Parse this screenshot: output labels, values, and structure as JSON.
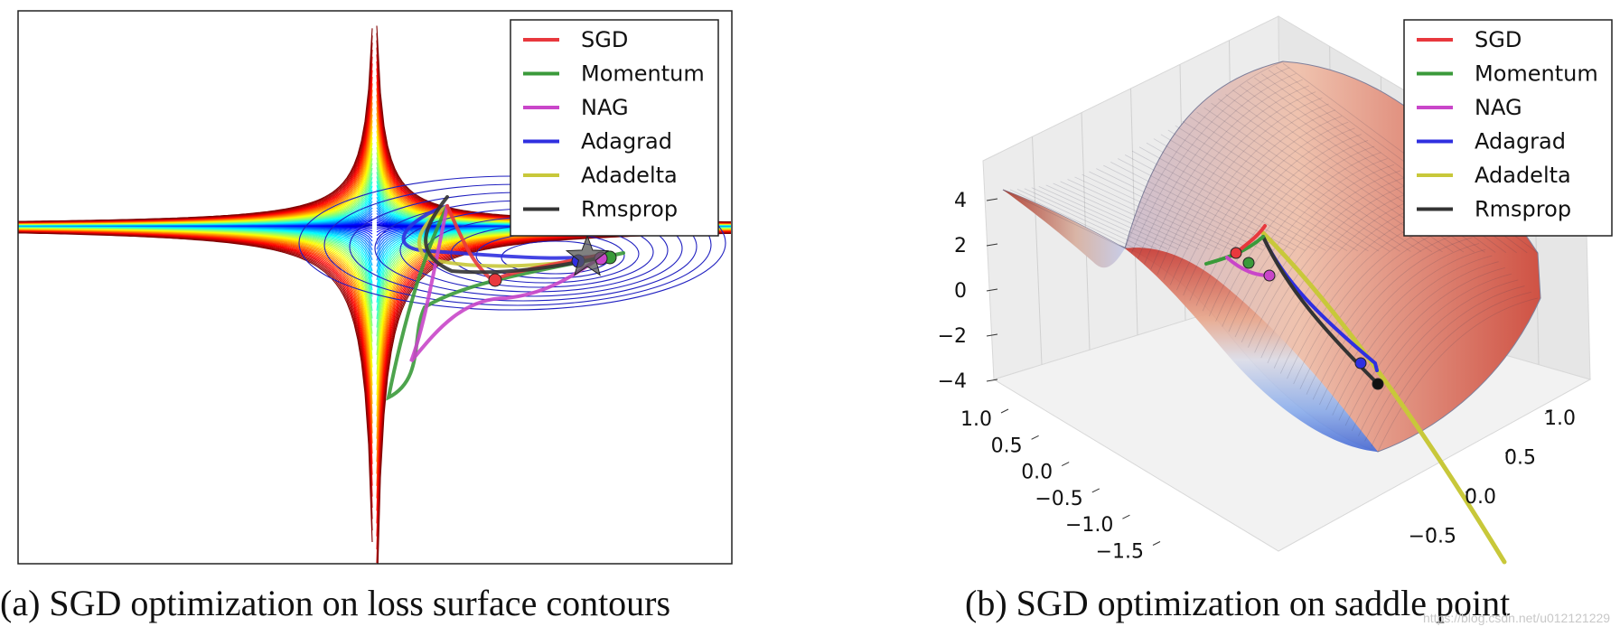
{
  "captions": {
    "a": "(a) SGD optimization on loss surface contours",
    "b": "(b) SGD optimization on saddle point"
  },
  "watermark": "https://blog.csdn.net/u012121229",
  "chart_data": [
    {
      "type": "line",
      "subtype": "contour-with-trajectories",
      "title": "",
      "surface": "beale-like loss surface, contour lines colored blue (low) to red (high) via jet colormap",
      "axes_visible": false,
      "grid": false,
      "legend_position": "top-right",
      "series": [
        {
          "name": "SGD",
          "color": "#e8383d"
        },
        {
          "name": "Momentum",
          "color": "#3a9a3a"
        },
        {
          "name": "NAG",
          "color": "#c946c9"
        },
        {
          "name": "Adagrad",
          "color": "#2f2fe0"
        },
        {
          "name": "Adadelta",
          "color": "#c8c83a"
        },
        {
          "name": "Rmsprop",
          "color": "#333333"
        }
      ],
      "minimum_marker": "star"
    },
    {
      "type": "surface",
      "subtype": "3d-saddle-with-trajectories",
      "title": "",
      "surface": "z = x^2 - y^2 saddle, coolwarm colormap",
      "legend_position": "top-right",
      "axes": {
        "z_ticks": [
          "4",
          "2",
          "0",
          "−2",
          "−4"
        ],
        "x_ticks": [
          "1.0",
          "0.5",
          "0.0",
          "−0.5",
          "−1.0",
          "−1.5"
        ],
        "y_ticks": [
          "1.0",
          "0.5",
          "0.0",
          "−0.5"
        ]
      },
      "series": [
        {
          "name": "SGD",
          "color": "#e8383d"
        },
        {
          "name": "Momentum",
          "color": "#3a9a3a"
        },
        {
          "name": "NAG",
          "color": "#c946c9"
        },
        {
          "name": "Adagrad",
          "color": "#2f2fe0"
        },
        {
          "name": "Adadelta",
          "color": "#c8c83a"
        },
        {
          "name": "Rmsprop",
          "color": "#333333"
        }
      ]
    }
  ]
}
